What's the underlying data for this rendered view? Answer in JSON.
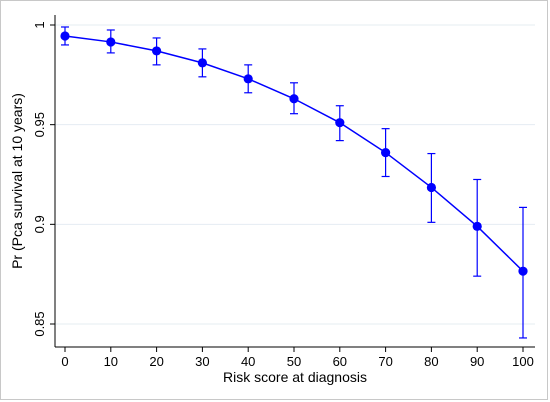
{
  "chart_data": {
    "type": "line",
    "xlabel": "Risk score at diagnosis",
    "ylabel": "Pr (Pca survival at 10 years)",
    "xlim": [
      0,
      100
    ],
    "ylim": [
      0.843,
      1.004
    ],
    "x_ticks": [
      "0",
      "10",
      "20",
      "30",
      "40",
      "50",
      "60",
      "70",
      "80",
      "90",
      "100"
    ],
    "y_ticks": [
      "0.85",
      "0.9",
      "0.95",
      "1"
    ],
    "grid": true,
    "series": [
      {
        "x": [
          0,
          10,
          20,
          30,
          40,
          50,
          60,
          70,
          80,
          90,
          100
        ],
        "y": [
          0.9945,
          0.9915,
          0.987,
          0.981,
          0.973,
          0.963,
          0.951,
          0.936,
          0.9185,
          0.899,
          0.8765
        ],
        "ci_lower": [
          0.99,
          0.986,
          0.98,
          0.974,
          0.966,
          0.9555,
          0.942,
          0.924,
          0.901,
          0.874,
          0.843
        ],
        "ci_upper": [
          0.999,
          0.9975,
          0.9935,
          0.988,
          0.98,
          0.971,
          0.9595,
          0.948,
          0.9355,
          0.9225,
          0.9085
        ]
      }
    ],
    "color": "#0000ff"
  }
}
